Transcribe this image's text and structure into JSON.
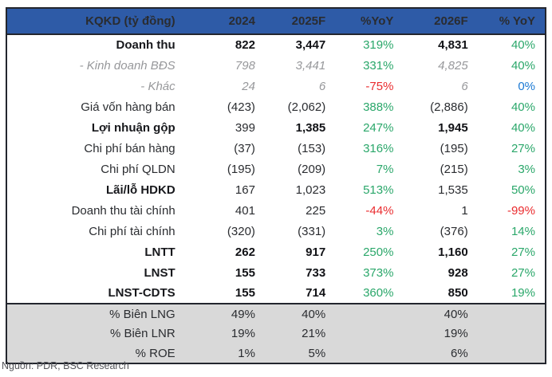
{
  "table": {
    "title": "KQKD (tỷ đồng)",
    "columns": [
      "2024",
      "2025F",
      "%YoY",
      "2026F",
      "% YoY"
    ],
    "colors": {
      "header_bg": "#2e5ba7",
      "header_text": "#ffffff",
      "positive": "#2aa76a",
      "negative": "#ea2c2f",
      "zero": "#1b79d3",
      "muted": "#97989b",
      "text": "#2a2c30",
      "section_bg": "#d9d9d9",
      "border": "#23262e"
    },
    "rows": [
      {
        "label": "Doanh thu",
        "style": "bold",
        "cells": [
          {
            "v": "822",
            "b": true
          },
          {
            "v": "3,447",
            "b": true
          },
          {
            "v": "319%",
            "c": "pos"
          },
          {
            "v": "4,831",
            "b": true
          },
          {
            "v": "40%",
            "c": "pos"
          }
        ]
      },
      {
        "label": "- Kinh doanh BĐS",
        "style": "sub",
        "cells": [
          {
            "v": "798",
            "m": true
          },
          {
            "v": "3,441",
            "m": true
          },
          {
            "v": "331%",
            "c": "pos"
          },
          {
            "v": "4,825",
            "m": true
          },
          {
            "v": "40%",
            "c": "pos"
          }
        ]
      },
      {
        "label": "- Khác",
        "style": "sub",
        "cells": [
          {
            "v": "24",
            "m": true
          },
          {
            "v": "6",
            "m": true
          },
          {
            "v": "-75%",
            "c": "neg"
          },
          {
            "v": "6",
            "m": true
          },
          {
            "v": "0%",
            "c": "zero"
          }
        ]
      },
      {
        "label": "Giá vốn hàng bán",
        "style": "normal",
        "cells": [
          {
            "v": "(423)"
          },
          {
            "v": "(2,062)"
          },
          {
            "v": "388%",
            "c": "pos"
          },
          {
            "v": "(2,886)"
          },
          {
            "v": "40%",
            "c": "pos"
          }
        ]
      },
      {
        "label": "Lợi nhuận gộp",
        "style": "bold",
        "cells": [
          {
            "v": "399"
          },
          {
            "v": "1,385",
            "b": true
          },
          {
            "v": "247%",
            "c": "pos"
          },
          {
            "v": "1,945",
            "b": true
          },
          {
            "v": "40%",
            "c": "pos"
          }
        ]
      },
      {
        "label": "Chi phí bán hàng",
        "style": "normal",
        "cells": [
          {
            "v": "(37)"
          },
          {
            "v": "(153)"
          },
          {
            "v": "316%",
            "c": "pos"
          },
          {
            "v": "(195)"
          },
          {
            "v": "27%",
            "c": "pos"
          }
        ]
      },
      {
        "label": "Chi phí QLDN",
        "style": "normal",
        "cells": [
          {
            "v": "(195)"
          },
          {
            "v": "(209)"
          },
          {
            "v": "7%",
            "c": "pos"
          },
          {
            "v": "(215)"
          },
          {
            "v": "3%",
            "c": "pos"
          }
        ]
      },
      {
        "label": "Lãi/lỗ HDKD",
        "style": "bold",
        "cells": [
          {
            "v": "167"
          },
          {
            "v": "1,023"
          },
          {
            "v": "513%",
            "c": "pos"
          },
          {
            "v": "1,535"
          },
          {
            "v": "50%",
            "c": "pos"
          }
        ]
      },
      {
        "label": "Doanh thu tài chính",
        "style": "normal",
        "cells": [
          {
            "v": "401"
          },
          {
            "v": "225"
          },
          {
            "v": "-44%",
            "c": "neg"
          },
          {
            "v": "1"
          },
          {
            "v": "-99%",
            "c": "neg"
          }
        ]
      },
      {
        "label": "Chi phí tài chính",
        "style": "normal",
        "cells": [
          {
            "v": "(320)"
          },
          {
            "v": "(331)"
          },
          {
            "v": "3%",
            "c": "pos"
          },
          {
            "v": "(376)"
          },
          {
            "v": "14%",
            "c": "pos"
          }
        ]
      },
      {
        "label": "LNTT",
        "style": "bold",
        "cells": [
          {
            "v": "262",
            "b": true
          },
          {
            "v": "917",
            "b": true
          },
          {
            "v": "250%",
            "c": "pos"
          },
          {
            "v": "1,160",
            "b": true
          },
          {
            "v": "27%",
            "c": "pos"
          }
        ]
      },
      {
        "label": "LNST",
        "style": "bold",
        "cells": [
          {
            "v": "155",
            "b": true
          },
          {
            "v": "733",
            "b": true
          },
          {
            "v": "373%",
            "c": "pos"
          },
          {
            "v": "928",
            "b": true
          },
          {
            "v": "27%",
            "c": "pos"
          }
        ]
      },
      {
        "label": "LNST-CDTS",
        "style": "bold",
        "cells": [
          {
            "v": "155",
            "b": true
          },
          {
            "v": "714",
            "b": true
          },
          {
            "v": "360%",
            "c": "pos"
          },
          {
            "v": "850",
            "b": true
          },
          {
            "v": "19%",
            "c": "pos"
          }
        ]
      }
    ],
    "ratio_rows": [
      {
        "label": "% Biên LNG",
        "cells": [
          "49%",
          "40%",
          "",
          "40%",
          ""
        ]
      },
      {
        "label": "% Biên LNR",
        "cells": [
          "19%",
          "21%",
          "",
          "19%",
          ""
        ]
      },
      {
        "label": "% ROE",
        "cells": [
          "1%",
          "5%",
          "",
          "6%",
          ""
        ]
      }
    ]
  },
  "footer": {
    "source": "Nguồn: PDR, BSC Research"
  }
}
